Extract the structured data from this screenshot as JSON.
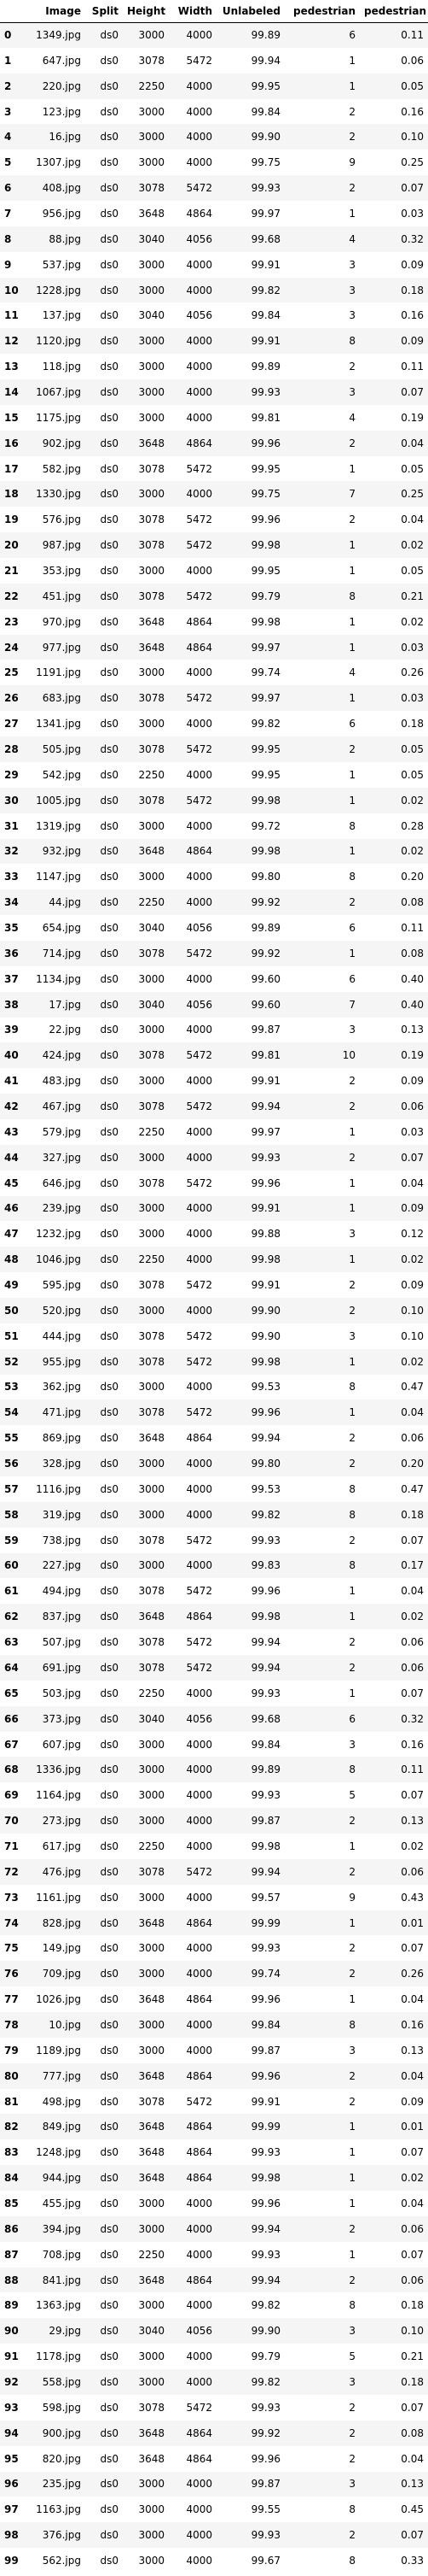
{
  "table": {
    "columns": [
      "",
      "Image",
      "Split",
      "Height",
      "Width",
      "Unlabeled",
      "pedestrian",
      "pedestrian"
    ],
    "rows": [
      [
        "0",
        "1349.jpg",
        "ds0",
        "3000",
        "4000",
        "99.89",
        "6",
        "0.11"
      ],
      [
        "1",
        "647.jpg",
        "ds0",
        "3078",
        "5472",
        "99.94",
        "1",
        "0.06"
      ],
      [
        "2",
        "220.jpg",
        "ds0",
        "2250",
        "4000",
        "99.95",
        "1",
        "0.05"
      ],
      [
        "3",
        "123.jpg",
        "ds0",
        "3000",
        "4000",
        "99.84",
        "2",
        "0.16"
      ],
      [
        "4",
        "16.jpg",
        "ds0",
        "3000",
        "4000",
        "99.90",
        "2",
        "0.10"
      ],
      [
        "5",
        "1307.jpg",
        "ds0",
        "3000",
        "4000",
        "99.75",
        "9",
        "0.25"
      ],
      [
        "6",
        "408.jpg",
        "ds0",
        "3078",
        "5472",
        "99.93",
        "2",
        "0.07"
      ],
      [
        "7",
        "956.jpg",
        "ds0",
        "3648",
        "4864",
        "99.97",
        "1",
        "0.03"
      ],
      [
        "8",
        "88.jpg",
        "ds0",
        "3040",
        "4056",
        "99.68",
        "4",
        "0.32"
      ],
      [
        "9",
        "537.jpg",
        "ds0",
        "3000",
        "4000",
        "99.91",
        "3",
        "0.09"
      ],
      [
        "10",
        "1228.jpg",
        "ds0",
        "3000",
        "4000",
        "99.82",
        "3",
        "0.18"
      ],
      [
        "11",
        "137.jpg",
        "ds0",
        "3040",
        "4056",
        "99.84",
        "3",
        "0.16"
      ],
      [
        "12",
        "1120.jpg",
        "ds0",
        "3000",
        "4000",
        "99.91",
        "8",
        "0.09"
      ],
      [
        "13",
        "118.jpg",
        "ds0",
        "3000",
        "4000",
        "99.89",
        "2",
        "0.11"
      ],
      [
        "14",
        "1067.jpg",
        "ds0",
        "3000",
        "4000",
        "99.93",
        "3",
        "0.07"
      ],
      [
        "15",
        "1175.jpg",
        "ds0",
        "3000",
        "4000",
        "99.81",
        "4",
        "0.19"
      ],
      [
        "16",
        "902.jpg",
        "ds0",
        "3648",
        "4864",
        "99.96",
        "2",
        "0.04"
      ],
      [
        "17",
        "582.jpg",
        "ds0",
        "3078",
        "5472",
        "99.95",
        "1",
        "0.05"
      ],
      [
        "18",
        "1330.jpg",
        "ds0",
        "3000",
        "4000",
        "99.75",
        "7",
        "0.25"
      ],
      [
        "19",
        "576.jpg",
        "ds0",
        "3078",
        "5472",
        "99.96",
        "2",
        "0.04"
      ],
      [
        "20",
        "987.jpg",
        "ds0",
        "3078",
        "5472",
        "99.98",
        "1",
        "0.02"
      ],
      [
        "21",
        "353.jpg",
        "ds0",
        "3000",
        "4000",
        "99.95",
        "1",
        "0.05"
      ],
      [
        "22",
        "451.jpg",
        "ds0",
        "3078",
        "5472",
        "99.79",
        "8",
        "0.21"
      ],
      [
        "23",
        "970.jpg",
        "ds0",
        "3648",
        "4864",
        "99.98",
        "1",
        "0.02"
      ],
      [
        "24",
        "977.jpg",
        "ds0",
        "3648",
        "4864",
        "99.97",
        "1",
        "0.03"
      ],
      [
        "25",
        "1191.jpg",
        "ds0",
        "3000",
        "4000",
        "99.74",
        "4",
        "0.26"
      ],
      [
        "26",
        "683.jpg",
        "ds0",
        "3078",
        "5472",
        "99.97",
        "1",
        "0.03"
      ],
      [
        "27",
        "1341.jpg",
        "ds0",
        "3000",
        "4000",
        "99.82",
        "6",
        "0.18"
      ],
      [
        "28",
        "505.jpg",
        "ds0",
        "3078",
        "5472",
        "99.95",
        "2",
        "0.05"
      ],
      [
        "29",
        "542.jpg",
        "ds0",
        "2250",
        "4000",
        "99.95",
        "1",
        "0.05"
      ],
      [
        "30",
        "1005.jpg",
        "ds0",
        "3078",
        "5472",
        "99.98",
        "1",
        "0.02"
      ],
      [
        "31",
        "1319.jpg",
        "ds0",
        "3000",
        "4000",
        "99.72",
        "8",
        "0.28"
      ],
      [
        "32",
        "932.jpg",
        "ds0",
        "3648",
        "4864",
        "99.98",
        "1",
        "0.02"
      ],
      [
        "33",
        "1147.jpg",
        "ds0",
        "3000",
        "4000",
        "99.80",
        "8",
        "0.20"
      ],
      [
        "34",
        "44.jpg",
        "ds0",
        "2250",
        "4000",
        "99.92",
        "2",
        "0.08"
      ],
      [
        "35",
        "654.jpg",
        "ds0",
        "3040",
        "4056",
        "99.89",
        "6",
        "0.11"
      ],
      [
        "36",
        "714.jpg",
        "ds0",
        "3078",
        "5472",
        "99.92",
        "1",
        "0.08"
      ],
      [
        "37",
        "1134.jpg",
        "ds0",
        "3000",
        "4000",
        "99.60",
        "6",
        "0.40"
      ],
      [
        "38",
        "17.jpg",
        "ds0",
        "3040",
        "4056",
        "99.60",
        "7",
        "0.40"
      ],
      [
        "39",
        "22.jpg",
        "ds0",
        "3000",
        "4000",
        "99.87",
        "3",
        "0.13"
      ],
      [
        "40",
        "424.jpg",
        "ds0",
        "3078",
        "5472",
        "99.81",
        "10",
        "0.19"
      ],
      [
        "41",
        "483.jpg",
        "ds0",
        "3000",
        "4000",
        "99.91",
        "2",
        "0.09"
      ],
      [
        "42",
        "467.jpg",
        "ds0",
        "3078",
        "5472",
        "99.94",
        "2",
        "0.06"
      ],
      [
        "43",
        "579.jpg",
        "ds0",
        "2250",
        "4000",
        "99.97",
        "1",
        "0.03"
      ],
      [
        "44",
        "327.jpg",
        "ds0",
        "3000",
        "4000",
        "99.93",
        "2",
        "0.07"
      ],
      [
        "45",
        "646.jpg",
        "ds0",
        "3078",
        "5472",
        "99.96",
        "1",
        "0.04"
      ],
      [
        "46",
        "239.jpg",
        "ds0",
        "3000",
        "4000",
        "99.91",
        "1",
        "0.09"
      ],
      [
        "47",
        "1232.jpg",
        "ds0",
        "3000",
        "4000",
        "99.88",
        "3",
        "0.12"
      ],
      [
        "48",
        "1046.jpg",
        "ds0",
        "2250",
        "4000",
        "99.98",
        "1",
        "0.02"
      ],
      [
        "49",
        "595.jpg",
        "ds0",
        "3078",
        "5472",
        "99.91",
        "2",
        "0.09"
      ],
      [
        "50",
        "520.jpg",
        "ds0",
        "3000",
        "4000",
        "99.90",
        "2",
        "0.10"
      ],
      [
        "51",
        "444.jpg",
        "ds0",
        "3078",
        "5472",
        "99.90",
        "3",
        "0.10"
      ],
      [
        "52",
        "955.jpg",
        "ds0",
        "3078",
        "5472",
        "99.98",
        "1",
        "0.02"
      ],
      [
        "53",
        "362.jpg",
        "ds0",
        "3000",
        "4000",
        "99.53",
        "8",
        "0.47"
      ],
      [
        "54",
        "471.jpg",
        "ds0",
        "3078",
        "5472",
        "99.96",
        "1",
        "0.04"
      ],
      [
        "55",
        "869.jpg",
        "ds0",
        "3648",
        "4864",
        "99.94",
        "2",
        "0.06"
      ],
      [
        "56",
        "328.jpg",
        "ds0",
        "3000",
        "4000",
        "99.80",
        "2",
        "0.20"
      ],
      [
        "57",
        "1116.jpg",
        "ds0",
        "3000",
        "4000",
        "99.53",
        "8",
        "0.47"
      ],
      [
        "58",
        "319.jpg",
        "ds0",
        "3000",
        "4000",
        "99.82",
        "8",
        "0.18"
      ],
      [
        "59",
        "738.jpg",
        "ds0",
        "3078",
        "5472",
        "99.93",
        "2",
        "0.07"
      ],
      [
        "60",
        "227.jpg",
        "ds0",
        "3000",
        "4000",
        "99.83",
        "8",
        "0.17"
      ],
      [
        "61",
        "494.jpg",
        "ds0",
        "3078",
        "5472",
        "99.96",
        "1",
        "0.04"
      ],
      [
        "62",
        "837.jpg",
        "ds0",
        "3648",
        "4864",
        "99.98",
        "1",
        "0.02"
      ],
      [
        "63",
        "507.jpg",
        "ds0",
        "3078",
        "5472",
        "99.94",
        "2",
        "0.06"
      ],
      [
        "64",
        "691.jpg",
        "ds0",
        "3078",
        "5472",
        "99.94",
        "2",
        "0.06"
      ],
      [
        "65",
        "503.jpg",
        "ds0",
        "2250",
        "4000",
        "99.93",
        "1",
        "0.07"
      ],
      [
        "66",
        "373.jpg",
        "ds0",
        "3040",
        "4056",
        "99.68",
        "6",
        "0.32"
      ],
      [
        "67",
        "607.jpg",
        "ds0",
        "3000",
        "4000",
        "99.84",
        "3",
        "0.16"
      ],
      [
        "68",
        "1336.jpg",
        "ds0",
        "3000",
        "4000",
        "99.89",
        "8",
        "0.11"
      ],
      [
        "69",
        "1164.jpg",
        "ds0",
        "3000",
        "4000",
        "99.93",
        "5",
        "0.07"
      ],
      [
        "70",
        "273.jpg",
        "ds0",
        "3000",
        "4000",
        "99.87",
        "2",
        "0.13"
      ],
      [
        "71",
        "617.jpg",
        "ds0",
        "2250",
        "4000",
        "99.98",
        "1",
        "0.02"
      ],
      [
        "72",
        "476.jpg",
        "ds0",
        "3078",
        "5472",
        "99.94",
        "2",
        "0.06"
      ],
      [
        "73",
        "1161.jpg",
        "ds0",
        "3000",
        "4000",
        "99.57",
        "9",
        "0.43"
      ],
      [
        "74",
        "828.jpg",
        "ds0",
        "3648",
        "4864",
        "99.99",
        "1",
        "0.01"
      ],
      [
        "75",
        "149.jpg",
        "ds0",
        "3000",
        "4000",
        "99.93",
        "2",
        "0.07"
      ],
      [
        "76",
        "709.jpg",
        "ds0",
        "3000",
        "4000",
        "99.74",
        "2",
        "0.26"
      ],
      [
        "77",
        "1026.jpg",
        "ds0",
        "3648",
        "4864",
        "99.96",
        "1",
        "0.04"
      ],
      [
        "78",
        "10.jpg",
        "ds0",
        "3000",
        "4000",
        "99.84",
        "8",
        "0.16"
      ],
      [
        "79",
        "1189.jpg",
        "ds0",
        "3000",
        "4000",
        "99.87",
        "3",
        "0.13"
      ],
      [
        "80",
        "777.jpg",
        "ds0",
        "3648",
        "4864",
        "99.96",
        "2",
        "0.04"
      ],
      [
        "81",
        "498.jpg",
        "ds0",
        "3078",
        "5472",
        "99.91",
        "2",
        "0.09"
      ],
      [
        "82",
        "849.jpg",
        "ds0",
        "3648",
        "4864",
        "99.99",
        "1",
        "0.01"
      ],
      [
        "83",
        "1248.jpg",
        "ds0",
        "3648",
        "4864",
        "99.93",
        "1",
        "0.07"
      ],
      [
        "84",
        "944.jpg",
        "ds0",
        "3648",
        "4864",
        "99.98",
        "1",
        "0.02"
      ],
      [
        "85",
        "455.jpg",
        "ds0",
        "3000",
        "4000",
        "99.96",
        "1",
        "0.04"
      ],
      [
        "86",
        "394.jpg",
        "ds0",
        "3000",
        "4000",
        "99.94",
        "2",
        "0.06"
      ],
      [
        "87",
        "708.jpg",
        "ds0",
        "2250",
        "4000",
        "99.93",
        "1",
        "0.07"
      ],
      [
        "88",
        "841.jpg",
        "ds0",
        "3648",
        "4864",
        "99.94",
        "2",
        "0.06"
      ],
      [
        "89",
        "1363.jpg",
        "ds0",
        "3000",
        "4000",
        "99.82",
        "8",
        "0.18"
      ],
      [
        "90",
        "29.jpg",
        "ds0",
        "3040",
        "4056",
        "99.90",
        "3",
        "0.10"
      ],
      [
        "91",
        "1178.jpg",
        "ds0",
        "3000",
        "4000",
        "99.79",
        "5",
        "0.21"
      ],
      [
        "92",
        "558.jpg",
        "ds0",
        "3000",
        "4000",
        "99.82",
        "3",
        "0.18"
      ],
      [
        "93",
        "598.jpg",
        "ds0",
        "3078",
        "5472",
        "99.93",
        "2",
        "0.07"
      ],
      [
        "94",
        "900.jpg",
        "ds0",
        "3648",
        "4864",
        "99.92",
        "2",
        "0.08"
      ],
      [
        "95",
        "820.jpg",
        "ds0",
        "3648",
        "4864",
        "99.96",
        "2",
        "0.04"
      ],
      [
        "96",
        "235.jpg",
        "ds0",
        "3000",
        "4000",
        "99.87",
        "3",
        "0.13"
      ],
      [
        "97",
        "1163.jpg",
        "ds0",
        "3000",
        "4000",
        "99.55",
        "8",
        "0.45"
      ],
      [
        "98",
        "376.jpg",
        "ds0",
        "3000",
        "4000",
        "99.93",
        "2",
        "0.07"
      ],
      [
        "99",
        "562.jpg",
        "ds0",
        "3000",
        "4000",
        "99.67",
        "8",
        "0.33"
      ]
    ]
  }
}
